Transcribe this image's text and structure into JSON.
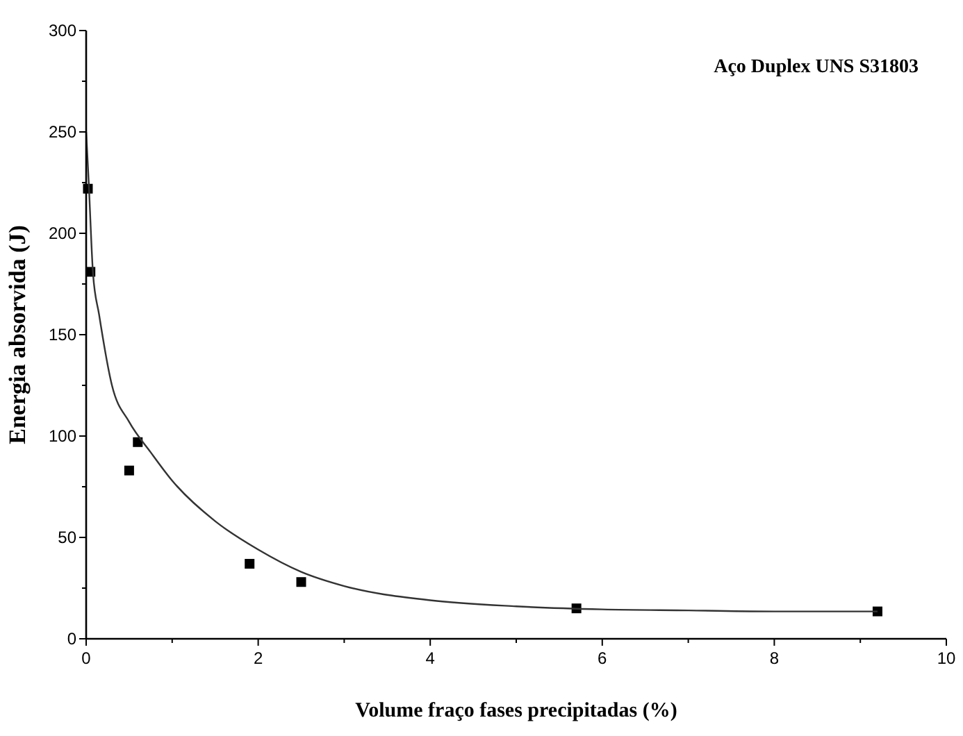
{
  "chart_data": {
    "type": "scatter",
    "xlabel": "Volume fraço fases precipitadas (%)",
    "ylabel": "Energia absorvida (J)",
    "annotations": [
      "Aço Duplex UNS S31803"
    ],
    "xlim": [
      0,
      10
    ],
    "ylim": [
      0,
      300
    ],
    "xticks": [
      0,
      {
        "value": 1,
        "label": null
      },
      2,
      {
        "value": 3,
        "label": null
      },
      4,
      {
        "value": 5,
        "label": null
      },
      6,
      {
        "value": 7,
        "label": null
      },
      8,
      {
        "value": 9,
        "label": null
      },
      10
    ],
    "yticks": [
      0,
      {
        "value": 25,
        "label": null
      },
      50,
      {
        "value": 75,
        "label": null
      },
      100,
      {
        "value": 125,
        "label": null
      },
      150,
      {
        "value": 175,
        "label": null
      },
      200,
      {
        "value": 225,
        "label": null
      },
      250,
      {
        "value": 275,
        "label": null
      },
      300
    ],
    "grid": false,
    "series": [
      {
        "marker": "square",
        "color": "#000000",
        "x": [
          0.02,
          0.05,
          0.5,
          0.6,
          1.9,
          2.5,
          5.7,
          9.2
        ],
        "values": [
          222,
          181,
          83,
          97,
          37,
          28,
          15,
          13.5
        ]
      },
      {
        "type": "line",
        "marker": "none",
        "line_style": "solid",
        "color": "#333333",
        "x": [
          0,
          0.03,
          0.08,
          0.15,
          0.3,
          0.5,
          0.75,
          1,
          1.5,
          2,
          2.5,
          3,
          4,
          5,
          6,
          7,
          8,
          9.2
        ],
        "values": [
          250,
          225,
          180,
          160,
          125,
          107,
          92,
          78,
          58,
          44,
          33,
          26,
          19,
          16,
          14.5,
          14,
          13.5,
          13.5
        ]
      }
    ]
  }
}
